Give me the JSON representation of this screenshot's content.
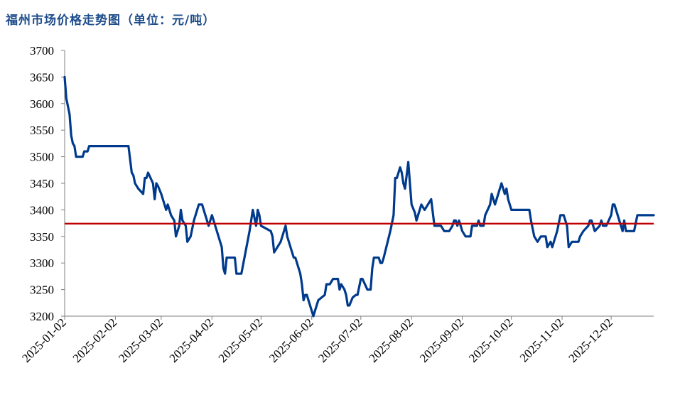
{
  "chart_data": {
    "type": "line",
    "title": "福州市场价格走势图（单位：元/吨）",
    "xlabel": "",
    "ylabel": "",
    "ylim": [
      3200,
      3700
    ],
    "yticks": [
      3200,
      3250,
      3300,
      3350,
      3400,
      3450,
      3500,
      3550,
      3600,
      3650,
      3700
    ],
    "x_range": [
      "2025-01-02",
      "2025-12-28"
    ],
    "xticks": [
      "2025-01-02",
      "2025-02-02",
      "2025-03-02",
      "2025-04-02",
      "2025-05-02",
      "2025-06-02",
      "2025-07-02",
      "2025-08-02",
      "2025-09-02",
      "2025-10-02",
      "2025-11-02",
      "2025-12-02"
    ],
    "reference_line": {
      "value": 3374,
      "color": "#c00000"
    },
    "series": [
      {
        "name": "福州市场价格",
        "color": "#003a8c",
        "points": [
          [
            "2025-01-02",
            3650
          ],
          [
            "2025-01-03",
            3610
          ],
          [
            "2025-01-05",
            3580
          ],
          [
            "2025-01-06",
            3540
          ],
          [
            "2025-01-07",
            3525
          ],
          [
            "2025-01-08",
            3520
          ],
          [
            "2025-01-09",
            3500
          ],
          [
            "2025-01-13",
            3500
          ],
          [
            "2025-01-14",
            3510
          ],
          [
            "2025-01-16",
            3510
          ],
          [
            "2025-01-17",
            3520
          ],
          [
            "2025-02-10",
            3520
          ],
          [
            "2025-02-12",
            3470
          ],
          [
            "2025-02-13",
            3465
          ],
          [
            "2025-02-14",
            3450
          ],
          [
            "2025-02-16",
            3440
          ],
          [
            "2025-02-19",
            3430
          ],
          [
            "2025-02-20",
            3460
          ],
          [
            "2025-02-21",
            3460
          ],
          [
            "2025-02-22",
            3470
          ],
          [
            "2025-02-25",
            3450
          ],
          [
            "2025-02-26",
            3420
          ],
          [
            "2025-02-27",
            3450
          ],
          [
            "2025-02-28",
            3445
          ],
          [
            "2025-03-02",
            3430
          ],
          [
            "2025-03-04",
            3410
          ],
          [
            "2025-03-05",
            3400
          ],
          [
            "2025-03-06",
            3410
          ],
          [
            "2025-03-08",
            3390
          ],
          [
            "2025-03-10",
            3380
          ],
          [
            "2025-03-11",
            3350
          ],
          [
            "2025-03-13",
            3370
          ],
          [
            "2025-03-14",
            3400
          ],
          [
            "2025-03-15",
            3380
          ],
          [
            "2025-03-17",
            3370
          ],
          [
            "2025-03-18",
            3340
          ],
          [
            "2025-03-20",
            3350
          ],
          [
            "2025-03-22",
            3380
          ],
          [
            "2025-03-25",
            3410
          ],
          [
            "2025-03-27",
            3410
          ],
          [
            "2025-03-29",
            3390
          ],
          [
            "2025-03-31",
            3370
          ],
          [
            "2025-04-02",
            3390
          ],
          [
            "2025-04-04",
            3370
          ],
          [
            "2025-04-06",
            3350
          ],
          [
            "2025-04-08",
            3330
          ],
          [
            "2025-04-09",
            3290
          ],
          [
            "2025-04-10",
            3280
          ],
          [
            "2025-04-11",
            3310
          ],
          [
            "2025-04-16",
            3310
          ],
          [
            "2025-04-17",
            3280
          ],
          [
            "2025-04-20",
            3280
          ],
          [
            "2025-04-25",
            3360
          ],
          [
            "2025-04-27",
            3400
          ],
          [
            "2025-04-29",
            3370
          ],
          [
            "2025-04-30",
            3400
          ],
          [
            "2025-05-01",
            3390
          ],
          [
            "2025-05-02",
            3370
          ],
          [
            "2025-05-08",
            3360
          ],
          [
            "2025-05-09",
            3350
          ],
          [
            "2025-05-10",
            3320
          ],
          [
            "2025-05-12",
            3330
          ],
          [
            "2025-05-14",
            3340
          ],
          [
            "2025-05-16",
            3360
          ],
          [
            "2025-05-17",
            3370
          ],
          [
            "2025-05-18",
            3350
          ],
          [
            "2025-05-22",
            3310
          ],
          [
            "2025-05-23",
            3310
          ],
          [
            "2025-05-24",
            3300
          ],
          [
            "2025-05-26",
            3280
          ],
          [
            "2025-05-27",
            3260
          ],
          [
            "2025-05-28",
            3230
          ],
          [
            "2025-05-29",
            3240
          ],
          [
            "2025-05-30",
            3240
          ],
          [
            "2025-06-01",
            3220
          ],
          [
            "2025-06-02",
            3210
          ],
          [
            "2025-06-03",
            3200
          ],
          [
            "2025-06-04",
            3210
          ],
          [
            "2025-06-06",
            3230
          ],
          [
            "2025-06-08",
            3235
          ],
          [
            "2025-06-10",
            3240
          ],
          [
            "2025-06-11",
            3260
          ],
          [
            "2025-06-13",
            3260
          ],
          [
            "2025-06-14",
            3265
          ],
          [
            "2025-06-15",
            3270
          ],
          [
            "2025-06-18",
            3270
          ],
          [
            "2025-06-19",
            3250
          ],
          [
            "2025-06-20",
            3260
          ],
          [
            "2025-06-22",
            3250
          ],
          [
            "2025-06-23",
            3240
          ],
          [
            "2025-06-24",
            3220
          ],
          [
            "2025-06-25",
            3220
          ],
          [
            "2025-06-27",
            3235
          ],
          [
            "2025-06-29",
            3240
          ],
          [
            "2025-06-30",
            3240
          ],
          [
            "2025-07-02",
            3270
          ],
          [
            "2025-07-03",
            3270
          ],
          [
            "2025-07-06",
            3250
          ],
          [
            "2025-07-08",
            3250
          ],
          [
            "2025-07-09",
            3290
          ],
          [
            "2025-07-10",
            3310
          ],
          [
            "2025-07-13",
            3310
          ],
          [
            "2025-07-14",
            3300
          ],
          [
            "2025-07-15",
            3300
          ],
          [
            "2025-07-16",
            3310
          ],
          [
            "2025-07-20",
            3360
          ],
          [
            "2025-07-22",
            3390
          ],
          [
            "2025-07-23",
            3460
          ],
          [
            "2025-07-24",
            3460
          ],
          [
            "2025-07-26",
            3480
          ],
          [
            "2025-07-27",
            3470
          ],
          [
            "2025-07-28",
            3450
          ],
          [
            "2025-07-29",
            3440
          ],
          [
            "2025-07-31",
            3490
          ],
          [
            "2025-08-02",
            3410
          ],
          [
            "2025-08-04",
            3395
          ],
          [
            "2025-08-05",
            3380
          ],
          [
            "2025-08-07",
            3400
          ],
          [
            "2025-08-08",
            3410
          ],
          [
            "2025-08-10",
            3400
          ],
          [
            "2025-08-12",
            3410
          ],
          [
            "2025-08-14",
            3420
          ],
          [
            "2025-08-16",
            3370
          ],
          [
            "2025-08-20",
            3370
          ],
          [
            "2025-08-22",
            3360
          ],
          [
            "2025-08-25",
            3360
          ],
          [
            "2025-08-27",
            3370
          ],
          [
            "2025-08-28",
            3380
          ],
          [
            "2025-08-29",
            3380
          ],
          [
            "2025-08-30",
            3370
          ],
          [
            "2025-08-31",
            3380
          ],
          [
            "2025-09-02",
            3360
          ],
          [
            "2025-09-04",
            3350
          ],
          [
            "2025-09-07",
            3350
          ],
          [
            "2025-09-08",
            3370
          ],
          [
            "2025-09-11",
            3370
          ],
          [
            "2025-09-12",
            3380
          ],
          [
            "2025-09-13",
            3370
          ],
          [
            "2025-09-15",
            3370
          ],
          [
            "2025-09-16",
            3390
          ],
          [
            "2025-09-19",
            3410
          ],
          [
            "2025-09-20",
            3430
          ],
          [
            "2025-09-22",
            3410
          ],
          [
            "2025-09-24",
            3430
          ],
          [
            "2025-09-26",
            3450
          ],
          [
            "2025-09-28",
            3430
          ],
          [
            "2025-09-29",
            3440
          ],
          [
            "2025-09-30",
            3420
          ],
          [
            "2025-10-02",
            3400
          ],
          [
            "2025-10-13",
            3400
          ],
          [
            "2025-10-14",
            3380
          ],
          [
            "2025-10-16",
            3350
          ],
          [
            "2025-10-18",
            3340
          ],
          [
            "2025-10-20",
            3350
          ],
          [
            "2025-10-23",
            3350
          ],
          [
            "2025-10-24",
            3330
          ],
          [
            "2025-10-26",
            3340
          ],
          [
            "2025-10-27",
            3330
          ],
          [
            "2025-10-30",
            3360
          ],
          [
            "2025-11-01",
            3390
          ],
          [
            "2025-11-03",
            3390
          ],
          [
            "2025-11-05",
            3370
          ],
          [
            "2025-11-06",
            3330
          ],
          [
            "2025-11-08",
            3340
          ],
          [
            "2025-11-12",
            3340
          ],
          [
            "2025-11-13",
            3350
          ],
          [
            "2025-11-15",
            3360
          ],
          [
            "2025-11-18",
            3370
          ],
          [
            "2025-11-19",
            3380
          ],
          [
            "2025-11-20",
            3380
          ],
          [
            "2025-11-22",
            3360
          ],
          [
            "2025-11-25",
            3370
          ],
          [
            "2025-11-26",
            3380
          ],
          [
            "2025-11-27",
            3370
          ],
          [
            "2025-11-29",
            3370
          ],
          [
            "2025-12-02",
            3390
          ],
          [
            "2025-12-03",
            3410
          ],
          [
            "2025-12-04",
            3410
          ],
          [
            "2025-12-07",
            3380
          ],
          [
            "2025-12-09",
            3360
          ],
          [
            "2025-12-10",
            3380
          ],
          [
            "2025-12-11",
            3360
          ],
          [
            "2025-12-16",
            3360
          ],
          [
            "2025-12-18",
            3390
          ],
          [
            "2025-12-28",
            3390
          ]
        ]
      }
    ]
  }
}
